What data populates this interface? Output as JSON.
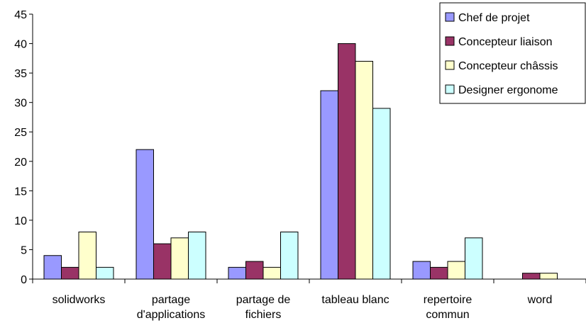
{
  "chart_data": {
    "type": "bar",
    "categories": [
      [
        "solidworks"
      ],
      [
        "partage",
        "d'applications"
      ],
      [
        "partage de",
        "fichiers"
      ],
      [
        "tableau blanc"
      ],
      [
        "repertoire",
        "commun"
      ],
      [
        "word"
      ]
    ],
    "series": [
      {
        "name": "Chef de projet",
        "color": "#9999ff",
        "values": [
          4,
          22,
          2,
          32,
          3,
          0
        ]
      },
      {
        "name": "Concepteur liaison",
        "color": "#993366",
        "values": [
          2,
          6,
          3,
          40,
          2,
          1
        ]
      },
      {
        "name": "Concepteur châssis",
        "color": "#ffffcc",
        "values": [
          8,
          7,
          2,
          37,
          3,
          1
        ]
      },
      {
        "name": "Designer ergonome",
        "color": "#ccffff",
        "values": [
          2,
          8,
          8,
          29,
          7,
          0
        ]
      }
    ],
    "ylim": [
      0,
      45
    ],
    "ytick_step": 5,
    "grid": false,
    "legend_position": "top-right"
  }
}
